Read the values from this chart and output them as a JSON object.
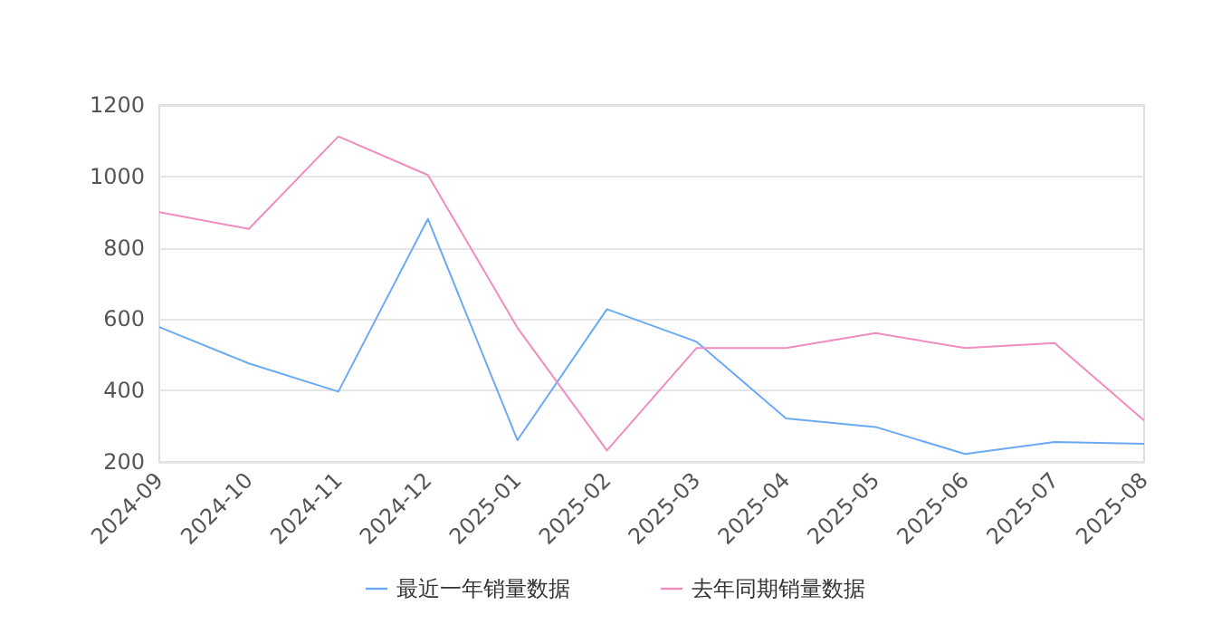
{
  "chart_data": {
    "type": "line",
    "categories": [
      "2024-09",
      "2024-10",
      "2024-11",
      "2024-12",
      "2025-01",
      "2025-02",
      "2025-03",
      "2025-04",
      "2025-05",
      "2025-06",
      "2025-07",
      "2025-08"
    ],
    "series": [
      {
        "name": "最近一年销量数据",
        "color": "#6aaaf5",
        "values": [
          578,
          476,
          397,
          881,
          261,
          628,
          537,
          322,
          298,
          222,
          256,
          251
        ]
      },
      {
        "name": "去年同期销量数据",
        "color": "#f08cbf",
        "values": [
          900,
          853,
          1112,
          1004,
          576,
          232,
          519,
          519,
          561,
          519,
          533,
          316
        ]
      }
    ],
    "ylim": [
      200,
      1200
    ],
    "yticks": [
      200,
      400,
      600,
      800,
      1000,
      1200
    ],
    "grid": "y",
    "legend": "bottom",
    "marker": "none",
    "line_style": "solid"
  }
}
